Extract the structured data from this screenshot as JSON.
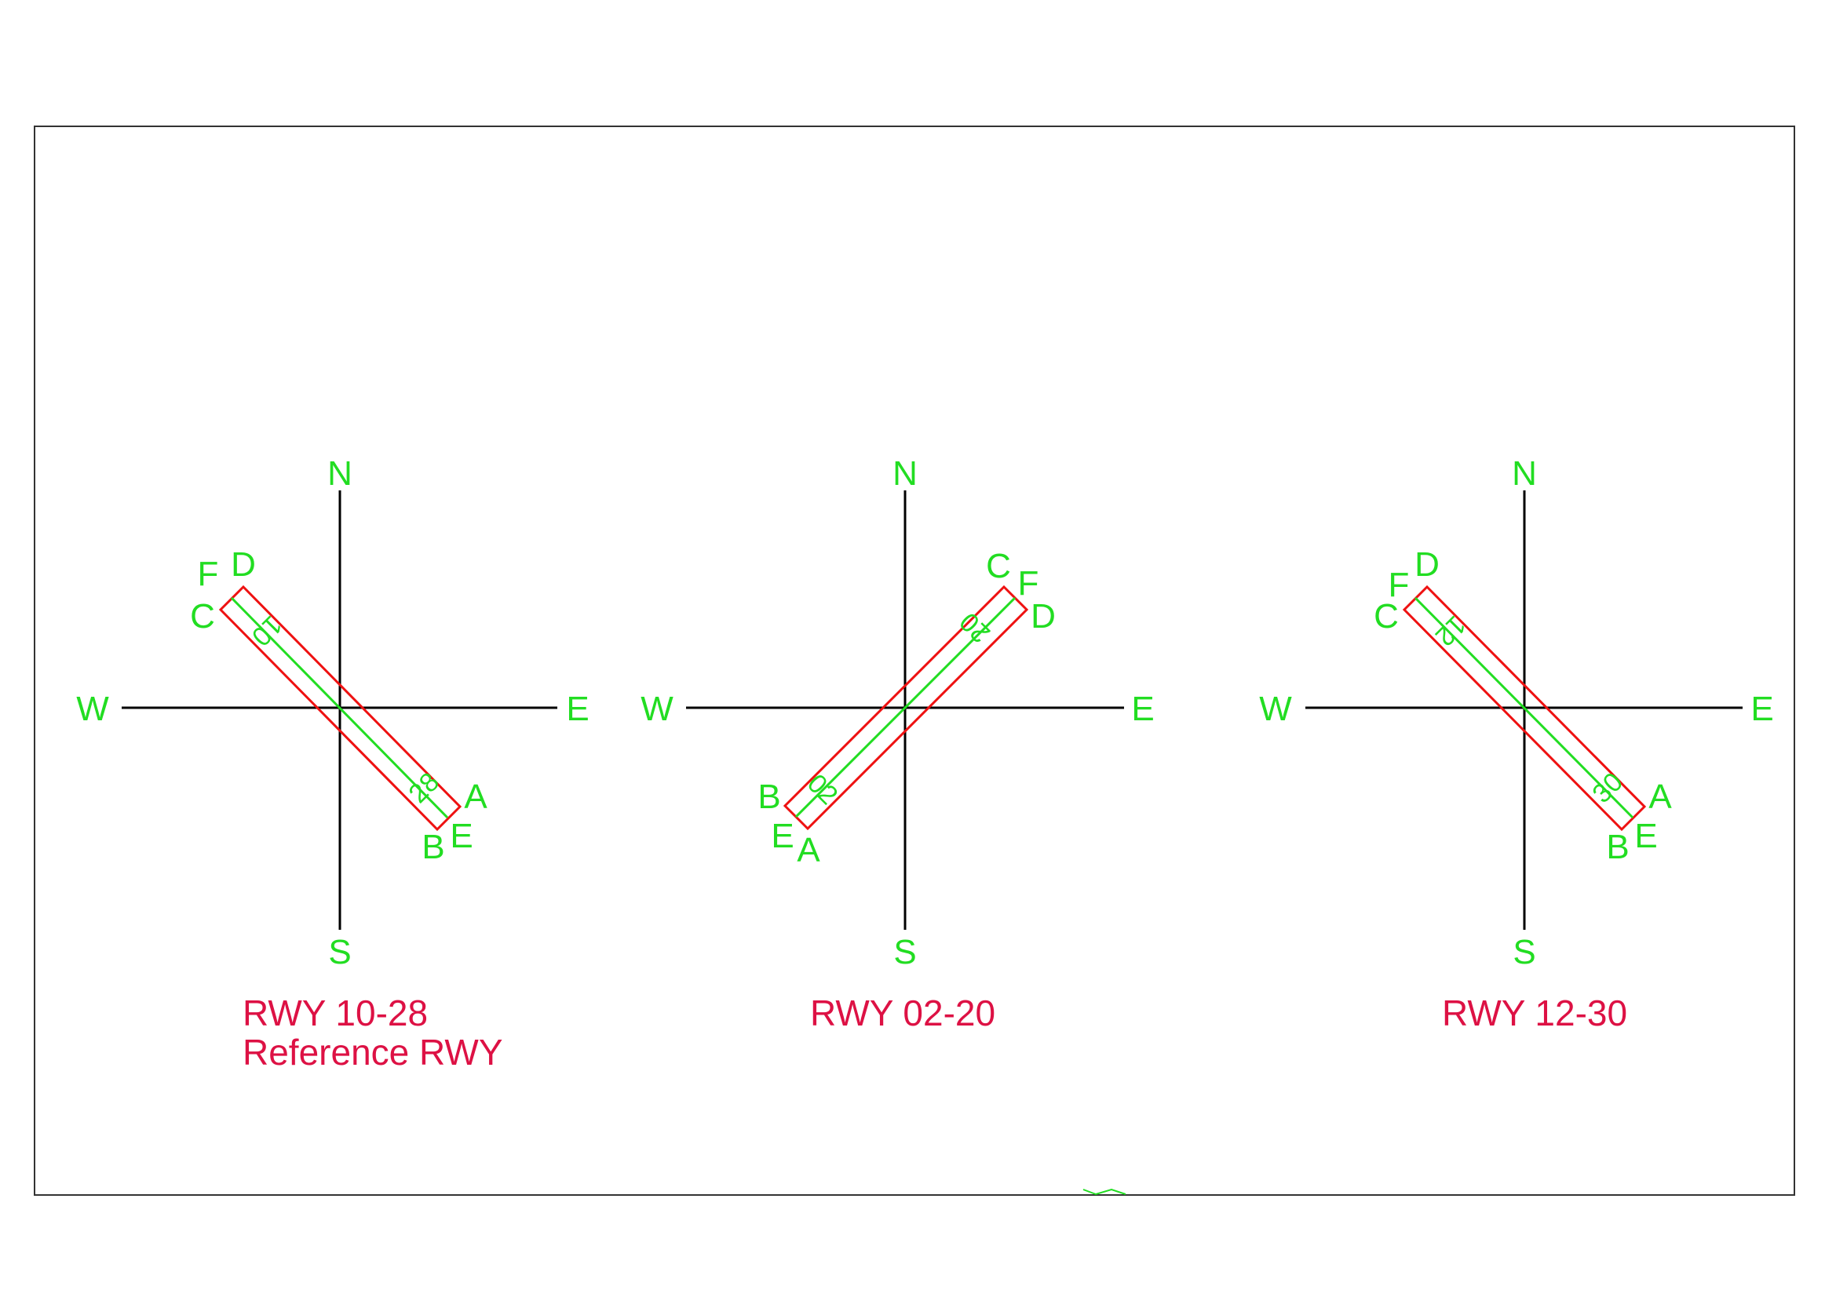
{
  "colors": {
    "axis": "#000000",
    "label": "#22dd22",
    "runway_outline": "#ee1111",
    "caption": "#dd1144"
  },
  "compass": {
    "north": "N",
    "south": "S",
    "east": "E",
    "west": "W"
  },
  "runways": [
    {
      "caption_line1": "RWY 10-28",
      "caption_line2": "Reference RWY",
      "end_numbers": [
        "10",
        "28"
      ],
      "points": {
        "A": "A",
        "B": "B",
        "C": "C",
        "D": "D",
        "E": "E",
        "F": "F"
      }
    },
    {
      "caption_line1": "RWY 02-20",
      "caption_line2": "",
      "end_numbers": [
        "02",
        "20"
      ],
      "points": {
        "A": "A",
        "B": "B",
        "C": "C",
        "D": "D",
        "E": "E",
        "F": "F"
      }
    },
    {
      "caption_line1": "RWY 12-30",
      "caption_line2": "",
      "end_numbers": [
        "12",
        "30"
      ],
      "points": {
        "A": "A",
        "B": "B",
        "C": "C",
        "D": "D",
        "E": "E",
        "F": "F"
      }
    }
  ]
}
